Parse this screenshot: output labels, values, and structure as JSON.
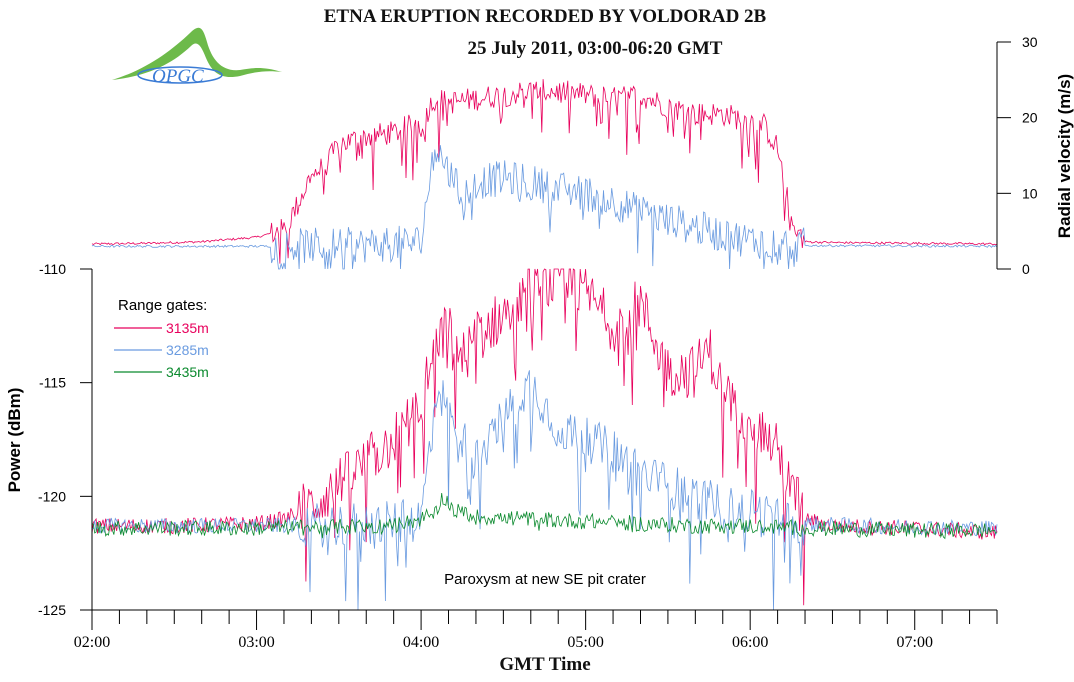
{
  "chart_data": [
    {
      "type": "line",
      "title": "ETNA ERUPTION RECORDED BY VOLDORAD 2B",
      "subtitle": "25 July 2011, 03:00-06:20 GMT",
      "ylabel": "Radial velocity (m/s)",
      "ylim": [
        0,
        30
      ],
      "yticks": [
        "0",
        "10",
        "20",
        "30"
      ],
      "xlim": [
        "02:00",
        "07:30"
      ],
      "series": [
        {
          "name": "3135m",
          "color": "#e8005c",
          "x": [
            "02:00",
            "02:20",
            "02:40",
            "03:00",
            "03:10",
            "03:15",
            "03:20",
            "03:25",
            "03:30",
            "03:40",
            "03:50",
            "04:00",
            "04:05",
            "04:10",
            "04:20",
            "04:30",
            "04:40",
            "04:50",
            "05:00",
            "05:10",
            "05:20",
            "05:30",
            "05:40",
            "05:50",
            "06:00",
            "06:05",
            "06:10",
            "06:15",
            "06:20",
            "06:30",
            "07:00",
            "07:30"
          ],
          "values": [
            3.3,
            3.4,
            3.6,
            4.2,
            5.2,
            8.5,
            12.5,
            13.5,
            16.5,
            17.5,
            18.0,
            19.5,
            22.5,
            22.0,
            22.5,
            23.0,
            23.5,
            23.5,
            23.0,
            22.5,
            23.0,
            21.5,
            20.5,
            20.5,
            19.5,
            19.0,
            16.0,
            6.5,
            3.6,
            3.5,
            3.4,
            3.3
          ]
        },
        {
          "name": "3285m",
          "color": "#6a9be0",
          "x": [
            "02:00",
            "03:00",
            "03:30",
            "03:50",
            "04:00",
            "04:02",
            "04:05",
            "04:10",
            "04:15",
            "04:20",
            "04:30",
            "04:40",
            "04:50",
            "05:00",
            "05:10",
            "05:20",
            "05:30",
            "05:40",
            "05:50",
            "06:00",
            "06:20",
            "07:30"
          ],
          "values": [
            3.0,
            3.0,
            3.1,
            3.3,
            3.6,
            9.0,
            16.5,
            13.0,
            9.5,
            11.5,
            12.0,
            11.5,
            10.5,
            10.0,
            9.0,
            7.5,
            6.5,
            5.5,
            4.5,
            3.8,
            3.1,
            3.0
          ]
        }
      ]
    },
    {
      "type": "line",
      "xlabel": "GMT Time",
      "ylabel": "Power (dBm)",
      "ylim": [
        -125,
        -110
      ],
      "yticks": [
        "-125",
        "-120",
        "-115",
        "-110"
      ],
      "xlim": [
        "02:00",
        "07:30"
      ],
      "xticks": [
        "02:00",
        "03:00",
        "04:00",
        "05:00",
        "06:00",
        "07:00"
      ],
      "legend": {
        "title": "Range gates:",
        "placement": "top-left"
      },
      "annotation": "Paroxysm at new SE pit crater",
      "series": [
        {
          "name": "3135m",
          "color": "#e8005c",
          "x": [
            "02:00",
            "02:30",
            "03:00",
            "03:10",
            "03:20",
            "03:30",
            "03:40",
            "03:50",
            "04:00",
            "04:05",
            "04:10",
            "04:15",
            "04:20",
            "04:30",
            "04:40",
            "04:50",
            "05:00",
            "05:10",
            "05:20",
            "05:30",
            "05:40",
            "05:45",
            "05:50",
            "06:00",
            "06:10",
            "06:15",
            "06:20",
            "06:30",
            "07:00",
            "07:30"
          ],
          "values": [
            -121.3,
            -121.3,
            -121.2,
            -121.0,
            -120.4,
            -119.5,
            -118.5,
            -117.5,
            -116.0,
            -113.5,
            -112.5,
            -114.0,
            -113.0,
            -112.0,
            -111.0,
            -110.5,
            -111.0,
            -112.5,
            -111.5,
            -114.5,
            -114.5,
            -113.5,
            -115.5,
            -116.5,
            -118.0,
            -119.5,
            -121.0,
            -121.3,
            -121.4,
            -121.6
          ]
        },
        {
          "name": "3285m",
          "color": "#6a9be0",
          "x": [
            "02:00",
            "03:00",
            "03:50",
            "04:00",
            "04:03",
            "04:06",
            "04:10",
            "04:15",
            "04:20",
            "04:30",
            "04:40",
            "04:50",
            "05:00",
            "05:10",
            "05:20",
            "05:30",
            "05:40",
            "05:50",
            "06:00",
            "06:10",
            "06:20",
            "06:40",
            "07:30"
          ],
          "values": [
            -121.3,
            -121.3,
            -121.2,
            -121.0,
            -118.0,
            -115.0,
            -116.5,
            -117.5,
            -118.5,
            -116.5,
            -115.0,
            -117.0,
            -117.5,
            -118.0,
            -119.0,
            -119.5,
            -120.0,
            -120.5,
            -120.7,
            -121.0,
            -121.2,
            -121.3,
            -121.4
          ]
        },
        {
          "name": "3435m",
          "color": "#0b8a2e",
          "x": [
            "02:00",
            "03:00",
            "03:50",
            "04:00",
            "04:05",
            "04:08",
            "04:12",
            "04:20",
            "04:40",
            "05:00",
            "05:20",
            "05:40",
            "06:00",
            "06:20",
            "07:00",
            "07:30"
          ],
          "values": [
            -121.4,
            -121.4,
            -121.3,
            -121.0,
            -120.7,
            -120.0,
            -120.6,
            -120.9,
            -121.0,
            -121.1,
            -121.2,
            -121.3,
            -121.3,
            -121.4,
            -121.5,
            -121.5
          ]
        }
      ]
    }
  ],
  "logo": {
    "text": "OPGC",
    "color": "#3a7bd5",
    "accent": "#5aab3a"
  }
}
